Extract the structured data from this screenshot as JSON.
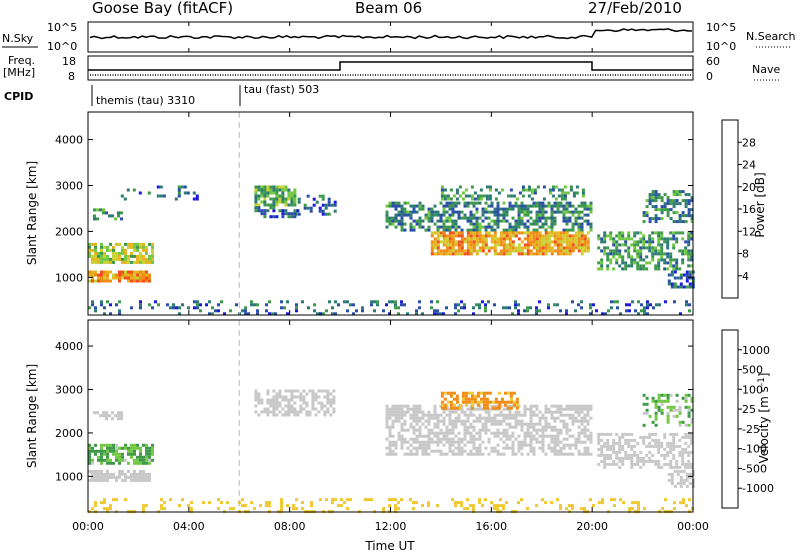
{
  "header": {
    "station": "Goose Bay (fitACF)",
    "beam": "Beam 06",
    "date": "27/Feb/2010"
  },
  "panels": {
    "nsky_label": "N.Sky",
    "nsearch_label": "N.Search",
    "nsky_ticks": [
      "10^5",
      "10^0"
    ],
    "nsearch_ticks": [
      "10^5",
      "10^0"
    ],
    "freq_label_1": "Freq.",
    "freq_label_2": "[MHz]",
    "freq_ticks": [
      "18",
      "8"
    ],
    "nave_label": "Nave",
    "nave_ticks": [
      "60",
      "0"
    ],
    "cpid_label": "CPID",
    "cpid_segments": [
      "themis (tau) 3310",
      "tau (fast) 503"
    ]
  },
  "chart_data": [
    {
      "type": "heatmap",
      "name": "power",
      "xlabel": "Time UT",
      "ylabel": "Slant Range [km]",
      "x_ticks": [
        "00:00",
        "04:00",
        "08:00",
        "12:00",
        "16:00",
        "20:00",
        "00:00"
      ],
      "y_ticks": [
        "4000",
        "3000",
        "2000",
        "1000"
      ],
      "xlim_hours": [
        0,
        24
      ],
      "ylim_km": [
        180,
        4600
      ],
      "colorbar": {
        "label": "Power [dB]",
        "ticks": [
          "28",
          "24",
          "20",
          "16",
          "12",
          "8",
          "4"
        ],
        "range": [
          0,
          30
        ],
        "colors": [
          "#1a1adc",
          "#2a4fa8",
          "#2e7a74",
          "#3e9a4a",
          "#72c842",
          "#c8d232",
          "#e6b41e",
          "#f08c14",
          "#f0501e",
          "#e61e1e"
        ]
      },
      "regions": [
        {
          "t0": 0.0,
          "t1": 2.4,
          "r0": 900,
          "r1": 1150,
          "value": 22,
          "density": 0.85
        },
        {
          "t0": 0.0,
          "t1": 2.6,
          "r0": 1300,
          "r1": 1750,
          "value": 16,
          "density": 0.75
        },
        {
          "t0": 0.2,
          "t1": 1.3,
          "r0": 2300,
          "r1": 2500,
          "value": 8,
          "density": 0.5
        },
        {
          "t0": 1.3,
          "t1": 4.3,
          "r0": 2700,
          "r1": 3000,
          "value": 6,
          "density": 0.12
        },
        {
          "t0": 6.6,
          "t1": 8.2,
          "r0": 2600,
          "r1": 3000,
          "value": 12,
          "density": 0.8
        },
        {
          "t0": 8.2,
          "t1": 9.8,
          "r0": 2400,
          "r1": 2800,
          "value": 6,
          "density": 0.4
        },
        {
          "t0": 6.6,
          "t1": 8.3,
          "r0": 2350,
          "r1": 2550,
          "value": 6,
          "density": 0.5
        },
        {
          "t0": 11.8,
          "t1": 19.9,
          "r0": 2000,
          "r1": 2650,
          "value": 8,
          "density": 0.6
        },
        {
          "t0": 13.6,
          "t1": 19.9,
          "r0": 1500,
          "r1": 2000,
          "value": 20,
          "density": 0.85
        },
        {
          "t0": 14.0,
          "t1": 19.6,
          "r0": 2700,
          "r1": 3000,
          "value": 10,
          "density": 0.35
        },
        {
          "t0": 20.2,
          "t1": 24.0,
          "r0": 1200,
          "r1": 2000,
          "value": 10,
          "density": 0.55
        },
        {
          "t0": 22.0,
          "t1": 24.0,
          "r0": 2200,
          "r1": 2900,
          "value": 8,
          "density": 0.45
        },
        {
          "t0": 23.0,
          "t1": 24.0,
          "r0": 800,
          "r1": 1150,
          "value": 6,
          "density": 0.6
        },
        {
          "t0": 0.0,
          "t1": 24.0,
          "r0": 200,
          "r1": 500,
          "value": 6,
          "density": 0.22
        }
      ]
    },
    {
      "type": "heatmap",
      "name": "velocity",
      "xlabel": "Time UT",
      "ylabel": "Slant Range [km]",
      "x_ticks": [
        "00:00",
        "04:00",
        "08:00",
        "12:00",
        "16:00",
        "20:00",
        "00:00"
      ],
      "y_ticks": [
        "4000",
        "3000",
        "2000",
        "1000"
      ],
      "xlim_hours": [
        0,
        24
      ],
      "ylim_km": [
        180,
        4600
      ],
      "colorbar": {
        "label": "Velocity [m s^-1]",
        "ticks": [
          "1000",
          "500",
          "100",
          "25",
          "-25",
          "-100",
          "-500",
          "-1000"
        ],
        "colors": [
          "#1a1adc",
          "#2a4fa8",
          "#2e7a74",
          "#3e9a4a",
          "#72c842",
          "#c8c8c8",
          "#f0c832",
          "#f08c14",
          "#f0501e",
          "#e61e1e"
        ]
      },
      "regions": [
        {
          "t0": 0.0,
          "t1": 2.4,
          "r0": 900,
          "r1": 1150,
          "value": 0,
          "density": 0.85
        },
        {
          "t0": 0.0,
          "t1": 2.6,
          "r0": 1300,
          "r1": 1750,
          "value": 120,
          "density": 0.75
        },
        {
          "t0": 0.2,
          "t1": 1.3,
          "r0": 2300,
          "r1": 2500,
          "value": 0,
          "density": 0.5
        },
        {
          "t0": 6.6,
          "t1": 9.8,
          "r0": 2400,
          "r1": 3000,
          "value": 0,
          "density": 0.6
        },
        {
          "t0": 11.8,
          "t1": 19.9,
          "r0": 1500,
          "r1": 2650,
          "value": 0,
          "density": 0.6
        },
        {
          "t0": 14.0,
          "t1": 17.0,
          "r0": 2550,
          "r1": 2950,
          "value": -150,
          "density": 0.6
        },
        {
          "t0": 20.2,
          "t1": 24.0,
          "r0": 1200,
          "r1": 2000,
          "value": 0,
          "density": 0.55
        },
        {
          "t0": 22.0,
          "t1": 24.0,
          "r0": 2200,
          "r1": 2900,
          "value": 80,
          "density": 0.4
        },
        {
          "t0": 23.0,
          "t1": 24.0,
          "r0": 800,
          "r1": 1150,
          "value": 0,
          "density": 0.6
        },
        {
          "t0": 0.0,
          "t1": 24.0,
          "r0": 200,
          "r1": 500,
          "value": -40,
          "density": 0.2
        }
      ]
    }
  ]
}
